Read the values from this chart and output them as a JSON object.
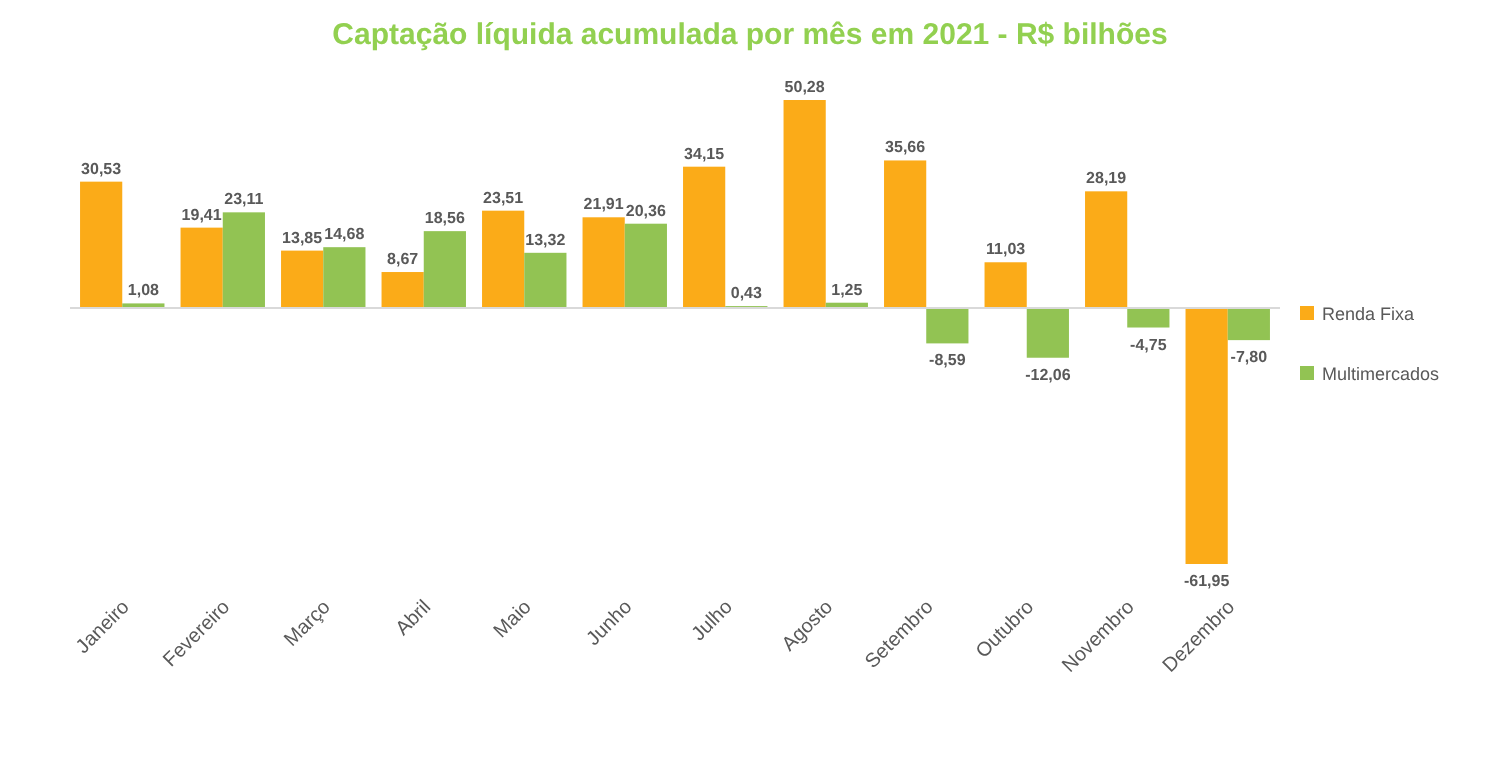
{
  "chart_data": {
    "type": "bar",
    "title": "Captação líquida acumulada por mês em 2021 - R$ bilhões",
    "categories": [
      "Janeiro",
      "Fevereiro",
      "Março",
      "Abril",
      "Maio",
      "Junho",
      "Julho",
      "Agosto",
      "Setembro",
      "Outubro",
      "Novembro",
      "Dezembro"
    ],
    "series": [
      {
        "name": "Renda Fixa",
        "color": "#fbab18",
        "values": [
          30.53,
          19.41,
          13.85,
          8.67,
          23.51,
          21.91,
          34.15,
          50.28,
          35.66,
          11.03,
          28.19,
          -61.95
        ],
        "value_labels": [
          "30,53",
          "19,41",
          "13,85",
          "8,67",
          "23,51",
          "21,91",
          "34,15",
          "50,28",
          "35,66",
          "11,03",
          "28,19",
          "-61,95"
        ]
      },
      {
        "name": "Multimercados",
        "color": "#92c353",
        "values": [
          1.08,
          23.11,
          14.68,
          18.56,
          13.32,
          20.36,
          0.43,
          1.25,
          -8.59,
          -12.06,
          -4.75,
          -7.8
        ],
        "value_labels": [
          "1,08",
          "23,11",
          "14,68",
          "18,56",
          "13,32",
          "20,36",
          "0,43",
          "1,25",
          "-8,59",
          "-12,06",
          "-4,75",
          "-7,80"
        ]
      }
    ],
    "legend": "right",
    "grid": false
  }
}
